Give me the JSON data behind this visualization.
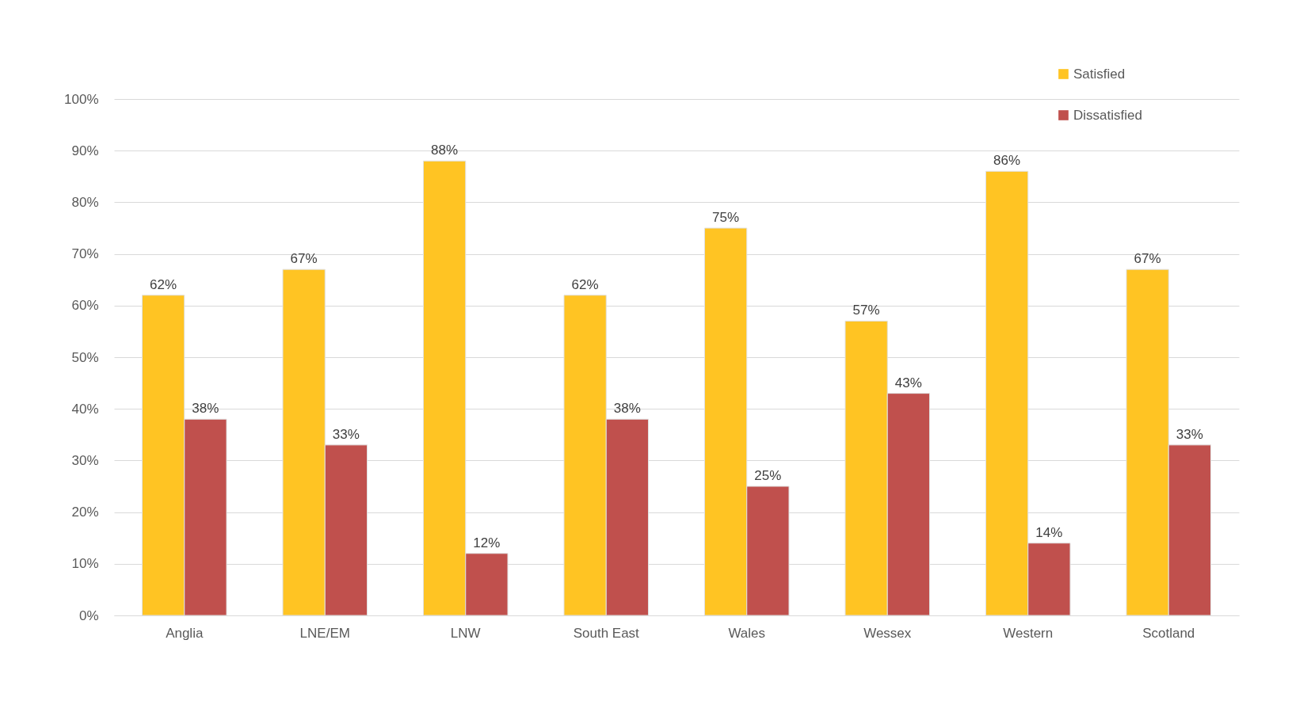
{
  "chart_data": {
    "type": "bar",
    "categories": [
      "Anglia",
      "LNE/EM",
      "LNW",
      "South East",
      "Wales",
      "Wessex",
      "Western",
      "Scotland"
    ],
    "series": [
      {
        "name": "Satisfied",
        "color": "#ffc423",
        "values": [
          62,
          67,
          88,
          62,
          75,
          57,
          86,
          67
        ]
      },
      {
        "name": "Dissatisfied",
        "color": "#c0504d",
        "values": [
          38,
          33,
          12,
          38,
          25,
          43,
          14,
          33
        ]
      }
    ],
    "ylim": [
      0,
      100
    ],
    "yticks": [
      {
        "value": 0,
        "label": "0%"
      },
      {
        "value": 10,
        "label": "10%"
      },
      {
        "value": 20,
        "label": "20%"
      },
      {
        "value": 30,
        "label": "30%"
      },
      {
        "value": 40,
        "label": "40%"
      },
      {
        "value": 50,
        "label": "50%"
      },
      {
        "value": 60,
        "label": "60%"
      },
      {
        "value": 70,
        "label": "70%"
      },
      {
        "value": 80,
        "label": "80%"
      },
      {
        "value": 90,
        "label": "90%"
      },
      {
        "value": 100,
        "label": "100%"
      }
    ],
    "data_labels": false,
    "value_labels": [
      [
        "62%",
        "67%",
        "88%",
        "62%",
        "75%",
        "57%",
        "86%",
        "67%"
      ],
      [
        "38%",
        "33%",
        "12%",
        "38%",
        "25%",
        "43%",
        "14%",
        "33%"
      ]
    ],
    "grid": "y",
    "legend": "top right"
  }
}
